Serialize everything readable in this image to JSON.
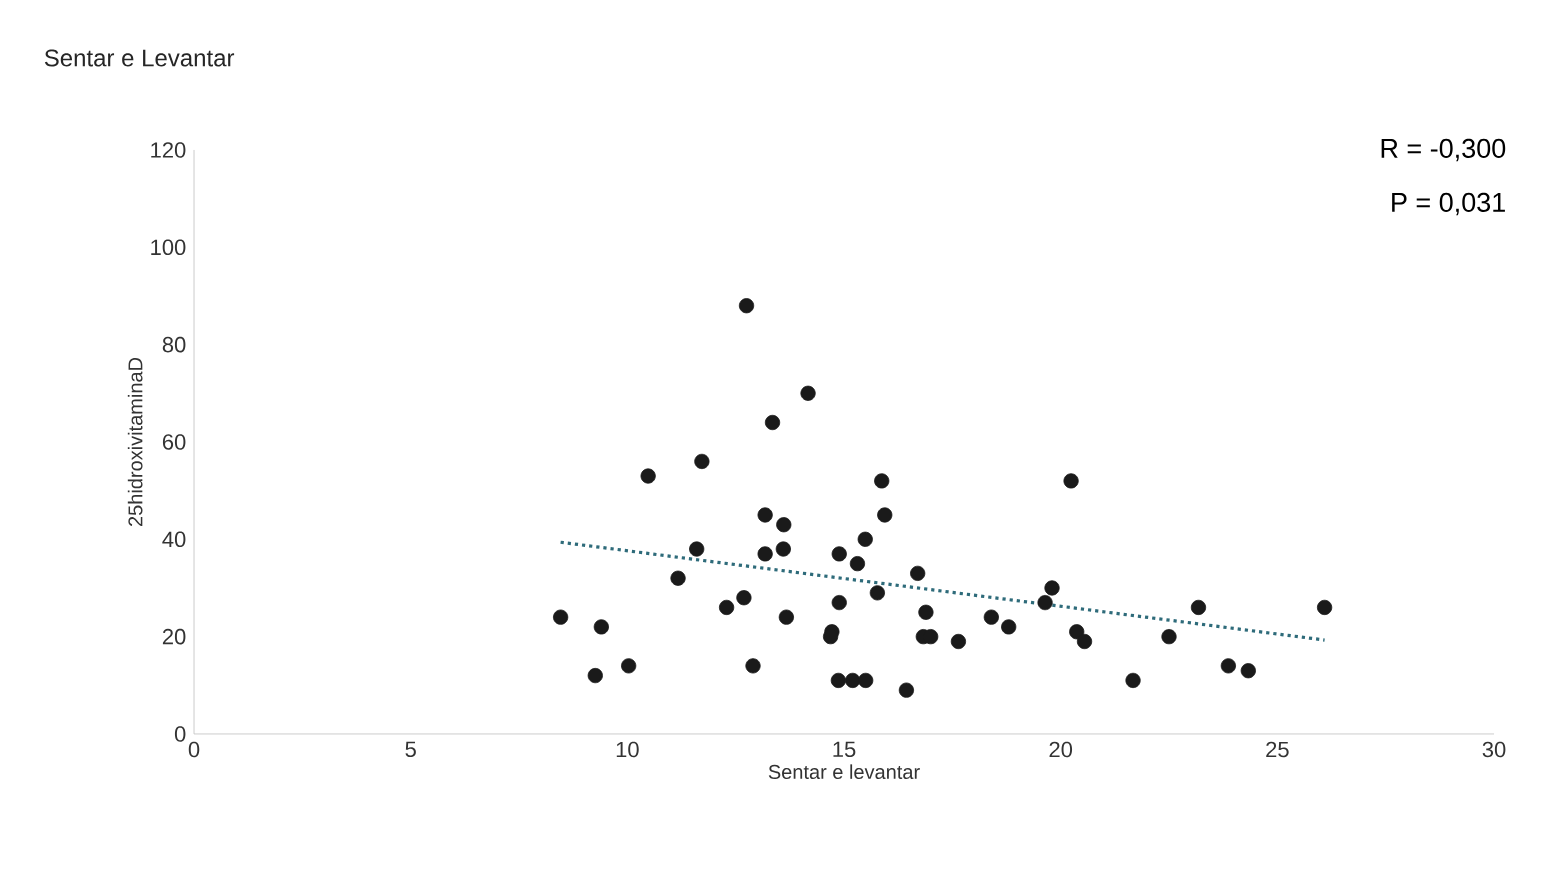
{
  "chart_data": {
    "type": "scatter",
    "title": "Sentar e Levantar",
    "xlabel": "Sentar e levantar",
    "ylabel": "25hidroxivitaminaD",
    "annotations": [
      "R = -0,300",
      "P = 0,031"
    ],
    "xlim": [
      0,
      30
    ],
    "ylim": [
      0,
      120
    ],
    "xticks": [
      0,
      5,
      10,
      15,
      20,
      25,
      30
    ],
    "yticks": [
      0,
      20,
      40,
      60,
      80,
      100,
      120
    ],
    "grid": false,
    "series": [
      {
        "color": "#1a1a1a",
        "marker": "circle",
        "x": [
          12.75,
          14.17,
          13.35,
          11.72,
          10.48,
          15.87,
          15.94,
          13.18,
          13.61,
          15.49,
          11.6,
          13.6,
          13.18,
          14.89,
          15.31,
          11.17,
          16.7,
          15.77,
          8.46,
          9.4,
          12.29,
          12.69,
          13.67,
          14.89,
          16.89,
          14.72,
          14.69,
          16.83,
          17.0,
          17.64,
          18.4,
          18.8,
          9.26,
          10.03,
          12.9,
          14.87,
          15.2,
          15.5,
          16.44,
          20.24,
          19.8,
          19.64,
          20.37,
          20.55,
          21.67,
          22.5,
          23.18,
          23.87,
          24.33,
          26.09
        ],
        "values": [
          88,
          70,
          64,
          56,
          53,
          52,
          45,
          45,
          43,
          40,
          38,
          38,
          37,
          37,
          35,
          32,
          33,
          29,
          24,
          22,
          26,
          28,
          24,
          27,
          25,
          21,
          20,
          20,
          20,
          19,
          24,
          22,
          12,
          14,
          14,
          11,
          11,
          11,
          9,
          52,
          30,
          27,
          21,
          19,
          11,
          20,
          26,
          14,
          13,
          26
        ]
      },
      {
        "type": "line",
        "color": "#2e6b7a",
        "line_style": "dotted",
        "marker": "none",
        "x": [
          8.46,
          26.09
        ],
        "values": [
          39.4,
          19.3
        ]
      }
    ]
  }
}
